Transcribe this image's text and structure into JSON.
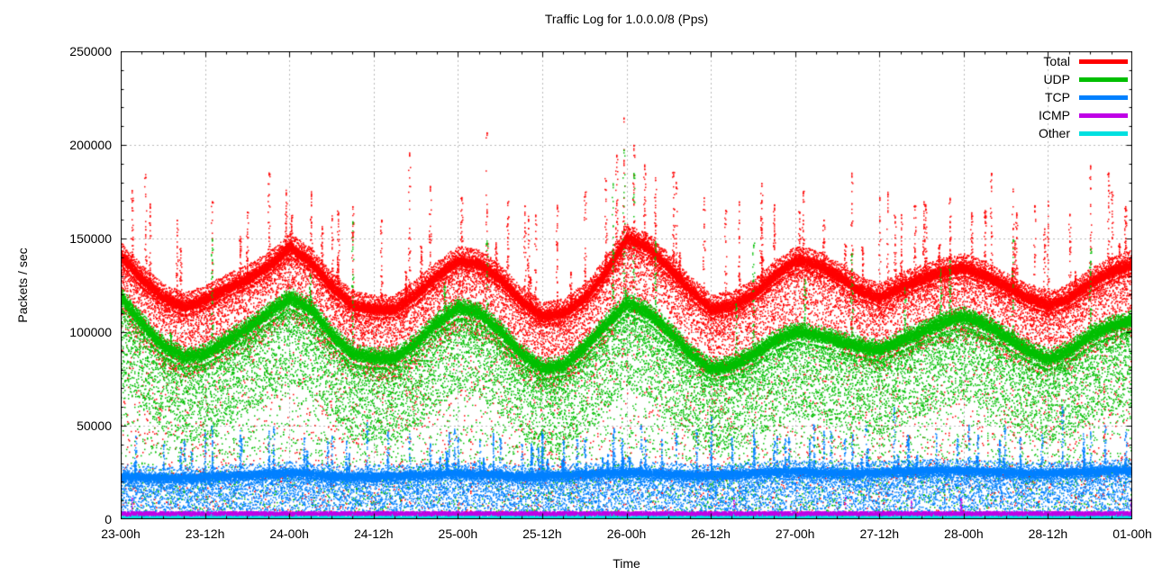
{
  "title": "Traffic Log for 1.0.0.0/8 (Pps)",
  "x_axis": {
    "label": "Time",
    "ticks": [
      "23-00h",
      "23-12h",
      "24-00h",
      "24-12h",
      "25-00h",
      "25-12h",
      "26-00h",
      "26-12h",
      "27-00h",
      "27-12h",
      "28-00h",
      "28-12h",
      "01-00h"
    ]
  },
  "y_axis": {
    "label": "Packets / sec",
    "ticks_top_to_bottom": [
      "250000",
      "200000",
      "150000",
      "100000",
      "50000",
      "0"
    ]
  },
  "chart_data": {
    "type": "scatter",
    "title": "Traffic Log for 1.0.0.0/8 (Pps)",
    "xlabel": "Time",
    "ylabel": "Packets / sec",
    "ylim": [
      0,
      250000
    ],
    "grid": true,
    "legend_position": "top-right-inside",
    "x_hours_span": 144,
    "x_tick_labels": [
      "23-00h",
      "23-12h",
      "24-00h",
      "24-12h",
      "25-00h",
      "25-12h",
      "26-00h",
      "26-12h",
      "27-00h",
      "27-12h",
      "28-00h",
      "28-12h",
      "01-00h"
    ],
    "series": [
      {
        "name": "Total",
        "color": "#ff0000",
        "band_center_pps_every_3h": [
          140000,
          128000,
          118000,
          113000,
          117000,
          123000,
          128000,
          135000,
          145000,
          137000,
          124000,
          114000,
          112000,
          112000,
          120000,
          130000,
          138000,
          136000,
          128000,
          116000,
          108000,
          110000,
          118000,
          132000,
          150000,
          145000,
          134000,
          122000,
          112000,
          114000,
          120000,
          130000,
          138000,
          136000,
          130000,
          122000,
          118000,
          124000,
          128000,
          132000,
          134000,
          130000,
          124000,
          118000,
          114000,
          118000,
          126000,
          132000,
          136000
        ]
      },
      {
        "name": "UDP",
        "color": "#00bf00",
        "band_center_pps_every_3h": [
          118000,
          104000,
          92000,
          86000,
          88000,
          95000,
          102000,
          110000,
          118000,
          112000,
          98000,
          88000,
          86000,
          86000,
          94000,
          105000,
          113000,
          110000,
          100000,
          88000,
          80000,
          82000,
          92000,
          104000,
          115000,
          110000,
          100000,
          88000,
          80000,
          82000,
          88000,
          95000,
          100000,
          98000,
          95000,
          92000,
          90000,
          95000,
          100000,
          105000,
          108000,
          104000,
          97000,
          90000,
          85000,
          90000,
          98000,
          103000,
          106000
        ]
      },
      {
        "name": "TCP",
        "color": "#0080ff",
        "band_center_pps_every_3h": [
          23000,
          22500,
          22000,
          22000,
          22500,
          23000,
          23500,
          24000,
          25000,
          24000,
          23000,
          22500,
          23000,
          23000,
          23500,
          24000,
          24500,
          24000,
          23500,
          23000,
          23000,
          23500,
          24000,
          24500,
          25000,
          24500,
          24000,
          23500,
          23500,
          24000,
          24500,
          25000,
          25500,
          25000,
          24500,
          24500,
          25000,
          25500,
          26000,
          26000,
          26000,
          25500,
          25000,
          24500,
          24500,
          25000,
          25500,
          26000,
          26000
        ]
      },
      {
        "name": "ICMP",
        "color": "#bf00e6",
        "band_center_pps_every_3h": [
          2800,
          2800
        ]
      },
      {
        "name": "Other",
        "color": "#00e0e0",
        "band_center_pps_every_3h": [
          700,
          700
        ]
      }
    ],
    "spikes": {
      "Total": [
        [
          3.5,
          185000
        ],
        [
          8,
          160000
        ],
        [
          13,
          172000
        ],
        [
          18,
          165000
        ],
        [
          21,
          186000
        ],
        [
          23.5,
          176000
        ],
        [
          27,
          175000
        ],
        [
          30,
          163000
        ],
        [
          33,
          168000
        ],
        [
          37,
          160000
        ],
        [
          41,
          196000
        ],
        [
          44,
          178000
        ],
        [
          48.5,
          172000
        ],
        [
          52,
          207000
        ],
        [
          55,
          170000
        ],
        [
          58,
          162000
        ],
        [
          62,
          168000
        ],
        [
          66,
          175000
        ],
        [
          69,
          182000
        ],
        [
          70.5,
          196000
        ],
        [
          71.5,
          215000
        ],
        [
          73,
          200000
        ],
        [
          74.5,
          190000
        ],
        [
          76,
          183000
        ],
        [
          79,
          180000
        ],
        [
          83,
          172000
        ],
        [
          86,
          165000
        ],
        [
          88,
          170000
        ],
        [
          91,
          162000
        ],
        [
          93,
          168000
        ],
        [
          96.5,
          165000
        ],
        [
          100,
          160000
        ],
        [
          104,
          185000
        ],
        [
          108,
          172000
        ],
        [
          111,
          163000
        ],
        [
          113,
          168000
        ],
        [
          118,
          172000
        ],
        [
          121,
          164000
        ],
        [
          123,
          165000
        ],
        [
          127,
          178000
        ],
        [
          130,
          168000
        ],
        [
          132,
          170000
        ],
        [
          135,
          163000
        ],
        [
          138,
          190000
        ],
        [
          141,
          175000
        ],
        [
          143,
          168000
        ]
      ],
      "UDP": [
        [
          13,
          150000
        ],
        [
          33,
          160000
        ],
        [
          52,
          150000
        ],
        [
          70,
          180000
        ],
        [
          71.5,
          198000
        ],
        [
          73,
          185000
        ],
        [
          76,
          150000
        ],
        [
          90,
          148000
        ],
        [
          104,
          142000
        ],
        [
          118,
          138000
        ],
        [
          127,
          150000
        ],
        [
          138,
          145000
        ]
      ],
      "TCP": [
        [
          2,
          45000
        ],
        [
          6,
          40000
        ],
        [
          9,
          42000
        ],
        [
          13,
          50000
        ],
        [
          17,
          43000
        ],
        [
          21,
          47000
        ],
        [
          26,
          44000
        ],
        [
          30,
          45000
        ],
        [
          32,
          42000
        ],
        [
          35,
          52000
        ],
        [
          38,
          48000
        ],
        [
          41,
          46000
        ],
        [
          44,
          41000
        ],
        [
          48,
          44000
        ],
        [
          51,
          42000
        ],
        [
          54,
          43000
        ],
        [
          57,
          40000
        ],
        [
          60,
          46000
        ],
        [
          63,
          42000
        ],
        [
          66,
          44000
        ],
        [
          70,
          46000
        ],
        [
          74,
          50000
        ],
        [
          77,
          43000
        ],
        [
          79,
          46000
        ],
        [
          82,
          48000
        ],
        [
          84,
          55000
        ],
        [
          87,
          44000
        ],
        [
          90,
          48000
        ],
        [
          93,
          42000
        ],
        [
          95,
          45000
        ],
        [
          98,
          43000
        ],
        [
          100,
          47000
        ],
        [
          103,
          44000
        ],
        [
          106,
          50000
        ],
        [
          110,
          60000
        ],
        [
          112,
          45000
        ],
        [
          116,
          46000
        ],
        [
          119,
          43000
        ],
        [
          122,
          45000
        ],
        [
          125,
          42000
        ],
        [
          128,
          44000
        ],
        [
          131,
          46000
        ],
        [
          134,
          60000
        ],
        [
          137,
          46000
        ],
        [
          140,
          50000
        ],
        [
          143,
          47000
        ]
      ]
    },
    "grid_color": "#b9b9b9",
    "border_color": "#000000"
  }
}
